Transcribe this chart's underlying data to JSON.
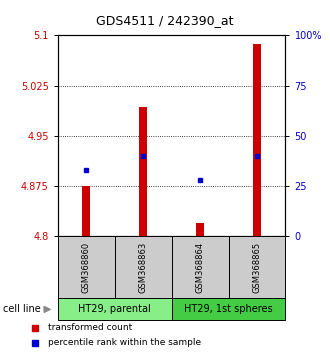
{
  "title": "GDS4511 / 242390_at",
  "samples": [
    "GSM368860",
    "GSM368863",
    "GSM368864",
    "GSM368865"
  ],
  "red_values": [
    4.875,
    4.993,
    4.82,
    5.087
  ],
  "blue_percentiles": [
    33,
    40,
    28,
    40
  ],
  "baseline": 4.8,
  "ylim_left": [
    4.8,
    5.1
  ],
  "ylim_right": [
    0,
    100
  ],
  "yticks_left": [
    4.8,
    4.875,
    4.95,
    5.025,
    5.1
  ],
  "yticks_right": [
    0,
    25,
    50,
    75,
    100
  ],
  "bar_color": "#cc0000",
  "dot_color": "#0000cc",
  "bar_width": 0.15,
  "tick_label_color_left": "#cc0000",
  "tick_label_color_right": "#0000cc",
  "sample_box_color": "#cccccc",
  "cell_groups": [
    {
      "label": "HT29, parental",
      "start": 0,
      "end": 2,
      "color": "#88ee88"
    },
    {
      "label": "HT29, 1st spheres",
      "start": 2,
      "end": 4,
      "color": "#44cc44"
    }
  ],
  "gridlines_at": [
    4.875,
    4.95,
    5.025
  ],
  "legend_items": [
    {
      "color": "#cc0000",
      "label": "transformed count"
    },
    {
      "color": "#0000cc",
      "label": "percentile rank within the sample"
    }
  ]
}
